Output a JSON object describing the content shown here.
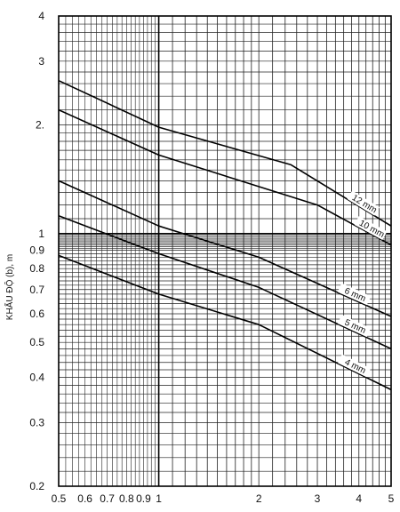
{
  "chart_data": {
    "type": "line",
    "title": "",
    "xlabel": "",
    "ylabel": "KHẨU ĐỘ (b), m",
    "x_scale": "log",
    "y_scale": "log",
    "xlim": [
      0.5,
      5
    ],
    "ylim": [
      0.2,
      4
    ],
    "grid": true,
    "x_ticks": [
      {
        "value": 0.5,
        "label": "0.5"
      },
      {
        "value": 0.6,
        "label": "0.6"
      },
      {
        "value": 0.7,
        "label": "0.7"
      },
      {
        "value": 0.8,
        "label": "0.8"
      },
      {
        "value": 0.9,
        "label": "0.9"
      },
      {
        "value": 1,
        "label": "1"
      },
      {
        "value": 2,
        "label": "2"
      },
      {
        "value": 3,
        "label": "3"
      },
      {
        "value": 4,
        "label": "4"
      },
      {
        "value": 5,
        "label": "5"
      }
    ],
    "y_ticks": [
      {
        "value": 0.2,
        "label": "0.2"
      },
      {
        "value": 0.3,
        "label": "0.3"
      },
      {
        "value": 0.4,
        "label": "0.4"
      },
      {
        "value": 0.5,
        "label": "0.5"
      },
      {
        "value": 0.6,
        "label": "0.6"
      },
      {
        "value": 0.7,
        "label": "0.7"
      },
      {
        "value": 0.8,
        "label": "0.8"
      },
      {
        "value": 0.9,
        "label": "0.9"
      },
      {
        "value": 1,
        "label": "1"
      },
      {
        "value": 2,
        "label": "2."
      },
      {
        "value": 3,
        "label": "3"
      },
      {
        "value": 4,
        "label": "4"
      }
    ],
    "series": [
      {
        "name": "12 mm",
        "x": [
          0.5,
          1.0,
          2.5,
          5.0
        ],
        "y": [
          2.65,
          1.97,
          1.55,
          1.05
        ]
      },
      {
        "name": "10 mm",
        "x": [
          0.5,
          1.0,
          3.0,
          5.0
        ],
        "y": [
          2.2,
          1.65,
          1.2,
          0.93
        ]
      },
      {
        "name": "6 mm",
        "x": [
          0.5,
          1.0,
          2.0,
          5.0
        ],
        "y": [
          1.4,
          1.05,
          0.86,
          0.59
        ]
      },
      {
        "name": "5 mm",
        "x": [
          0.5,
          1.0,
          2.0,
          5.0
        ],
        "y": [
          1.12,
          0.88,
          0.71,
          0.48
        ]
      },
      {
        "name": "4 mm",
        "x": [
          0.5,
          1.0,
          2.0,
          5.0
        ],
        "y": [
          0.87,
          0.68,
          0.56,
          0.37
        ]
      }
    ]
  }
}
